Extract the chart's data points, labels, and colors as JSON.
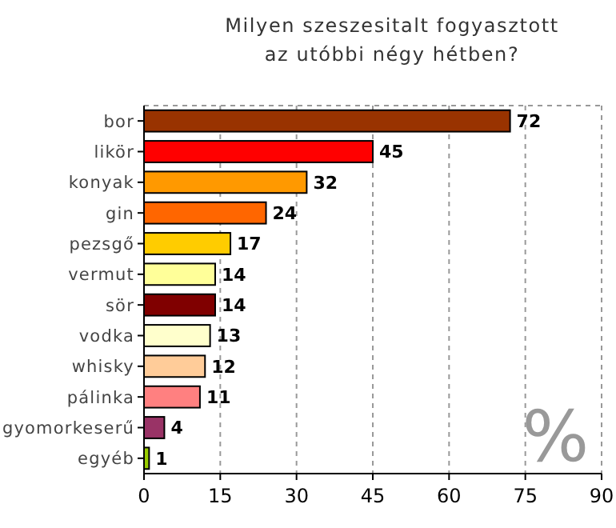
{
  "chart_data": {
    "type": "bar",
    "orientation": "horizontal",
    "title": "Milyen szeszesitalt fogyasztott\naz utóbbi négy hétben?",
    "categories": [
      "bor",
      "likör",
      "konyak",
      "gin",
      "pezsgő",
      "vermut",
      "sör",
      "vodka",
      "whisky",
      "pálinka",
      "gyomorkeserű",
      "egyéb"
    ],
    "values": [
      72,
      45,
      32,
      24,
      17,
      14,
      14,
      13,
      12,
      11,
      4,
      1
    ],
    "colors": [
      "#993300",
      "#ff0000",
      "#ff9900",
      "#ff6600",
      "#ffcc00",
      "#ffff99",
      "#800000",
      "#ffffcc",
      "#ffcc99",
      "#ff8080",
      "#993366",
      "#99cc00"
    ],
    "xlim": [
      0,
      90
    ],
    "xticks": [
      0,
      15,
      30,
      45,
      60,
      75,
      90
    ],
    "grid": "x",
    "data_labels": true,
    "annotations": [
      "%"
    ]
  }
}
